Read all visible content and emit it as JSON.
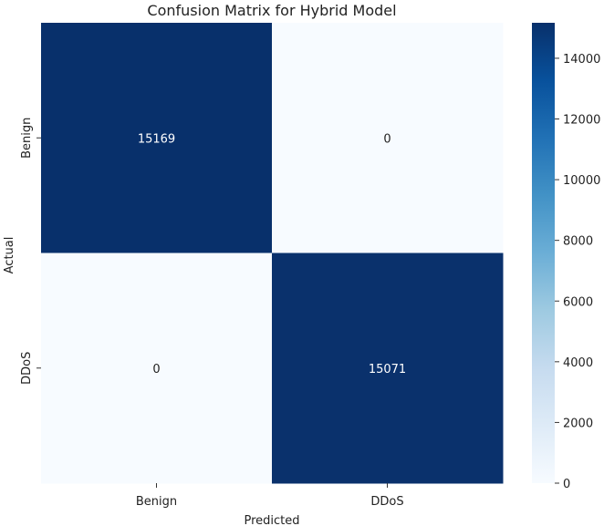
{
  "chart_data": {
    "type": "heatmap",
    "title": "Confusion Matrix for Hybrid Model",
    "xlabel": "Predicted",
    "ylabel": "Actual",
    "x_categories": [
      "Benign",
      "DDoS"
    ],
    "y_categories": [
      "Benign",
      "DDoS"
    ],
    "matrix": [
      [
        15169,
        0
      ],
      [
        0,
        15071
      ]
    ],
    "annotations": [
      [
        "15169",
        "0"
      ],
      [
        "0",
        "15071"
      ]
    ],
    "colormap": "Blues",
    "colors": {
      "low": "#f7fbff",
      "high": "#08306b",
      "annotation_on_dark": "#ffffff",
      "annotation_on_light": "#222222"
    },
    "colorbar": {
      "range": [
        0,
        15169
      ],
      "ticks": [
        0,
        2000,
        4000,
        6000,
        8000,
        10000,
        12000,
        14000
      ],
      "tick_labels": [
        "0",
        "2000",
        "4000",
        "6000",
        "8000",
        "10000",
        "12000",
        "14000"
      ]
    },
    "legend": "colorbar-right",
    "grid": false
  }
}
